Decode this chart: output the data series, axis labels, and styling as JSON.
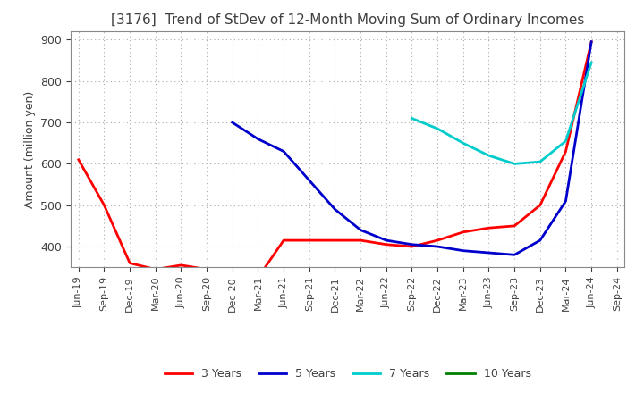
{
  "title": "[3176]  Trend of StDev of 12-Month Moving Sum of Ordinary Incomes",
  "ylabel": "Amount (million yen)",
  "ylim": [
    350,
    920
  ],
  "yticks": [
    400,
    500,
    600,
    700,
    800,
    900
  ],
  "background_color": "#ffffff",
  "grid_color": "#aaaaaa",
  "title_color": "#404040",
  "series": {
    "3 Years": {
      "color": "#ff0000",
      "dates": [
        "Jun-19",
        "Sep-19",
        "Dec-19",
        "Mar-20",
        "Jun-20",
        "Sep-20",
        "Dec-20",
        "Mar-21",
        "Jun-21",
        "Sep-21",
        "Dec-21",
        "Mar-22",
        "Jun-22",
        "Sep-22",
        "Dec-22",
        "Mar-23",
        "Jun-23",
        "Sep-23",
        "Dec-23",
        "Mar-24",
        "Jun-24"
      ],
      "values": [
        610,
        500,
        360,
        345,
        355,
        345,
        330,
        325,
        415,
        415,
        415,
        415,
        405,
        400,
        415,
        435,
        445,
        450,
        500,
        630,
        895
      ]
    },
    "5 Years": {
      "color": "#0000cc",
      "dates": [
        "Jun-19",
        "Sep-19",
        "Dec-19",
        "Mar-20",
        "Jun-20",
        "Sep-20",
        "Dec-20",
        "Mar-21",
        "Jun-21",
        "Sep-21",
        "Dec-21",
        "Mar-22",
        "Jun-22",
        "Sep-22",
        "Dec-22",
        "Mar-23",
        "Jun-23",
        "Sep-23",
        "Dec-23",
        "Mar-24",
        "Jun-24"
      ],
      "values": [
        null,
        null,
        null,
        null,
        null,
        null,
        700,
        660,
        630,
        560,
        490,
        440,
        415,
        405,
        400,
        390,
        385,
        380,
        415,
        510,
        895
      ]
    },
    "7 Years": {
      "color": "#00cccc",
      "dates": [
        "Jun-19",
        "Sep-19",
        "Dec-19",
        "Mar-20",
        "Jun-20",
        "Sep-20",
        "Dec-20",
        "Mar-21",
        "Jun-21",
        "Sep-21",
        "Dec-21",
        "Mar-22",
        "Jun-22",
        "Sep-22",
        "Dec-22",
        "Mar-23",
        "Jun-23",
        "Sep-23",
        "Dec-23",
        "Mar-24",
        "Jun-24"
      ],
      "values": [
        null,
        null,
        null,
        null,
        null,
        null,
        null,
        null,
        null,
        null,
        null,
        null,
        null,
        710,
        685,
        650,
        620,
        600,
        605,
        655,
        845
      ]
    },
    "10 Years": {
      "color": "#008000",
      "dates": [
        "Jun-19",
        "Sep-19",
        "Dec-19",
        "Mar-20",
        "Jun-20",
        "Sep-20",
        "Dec-20",
        "Mar-21",
        "Jun-21",
        "Sep-21",
        "Dec-21",
        "Mar-22",
        "Jun-22",
        "Sep-22",
        "Dec-22",
        "Mar-23",
        "Jun-23",
        "Sep-23",
        "Dec-23",
        "Mar-24",
        "Jun-24"
      ],
      "values": [
        null,
        null,
        null,
        null,
        null,
        null,
        null,
        null,
        null,
        null,
        null,
        null,
        null,
        null,
        null,
        null,
        null,
        null,
        null,
        null,
        895
      ]
    }
  },
  "x_tick_labels": [
    "Jun-19",
    "Sep-19",
    "Dec-19",
    "Mar-20",
    "Jun-20",
    "Sep-20",
    "Dec-20",
    "Mar-21",
    "Jun-21",
    "Sep-21",
    "Dec-21",
    "Mar-22",
    "Jun-22",
    "Sep-22",
    "Dec-22",
    "Mar-23",
    "Jun-23",
    "Sep-23",
    "Dec-23",
    "Mar-24",
    "Jun-24",
    "Sep-24"
  ],
  "legend_entries": [
    "3 Years",
    "5 Years",
    "7 Years",
    "10 Years"
  ],
  "legend_colors": [
    "#ff0000",
    "#0000cc",
    "#00cccc",
    "#008000"
  ],
  "title_fontsize": 11,
  "ylabel_fontsize": 9,
  "tick_fontsize": 8,
  "legend_fontsize": 9,
  "linewidth": 2.0
}
